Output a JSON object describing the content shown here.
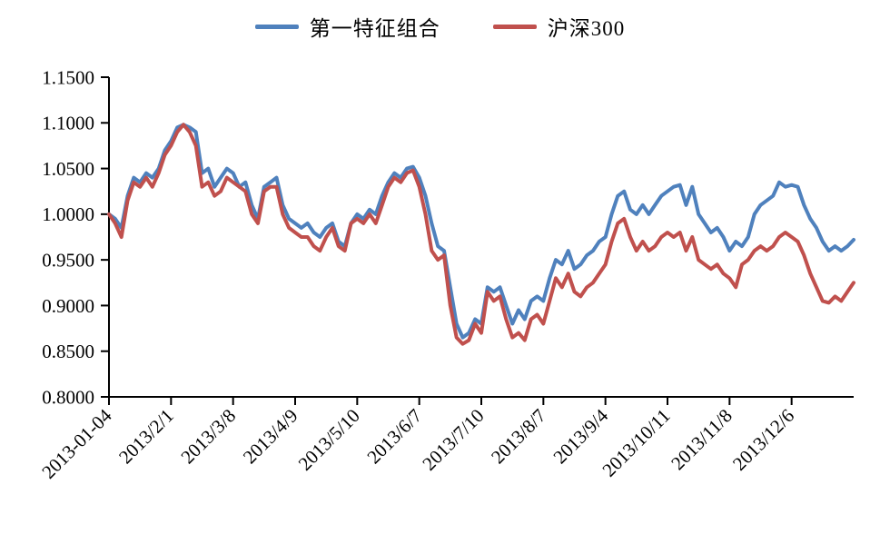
{
  "legend": {
    "items": [
      {
        "label": "第一特征组合",
        "color": "#4F81BD"
      },
      {
        "label": "沪深300",
        "color": "#C0504D"
      }
    ]
  },
  "chart_data": {
    "type": "line",
    "title": "",
    "xlabel": "",
    "ylabel": "",
    "grid": false,
    "legend_position": "top",
    "ylim": [
      0.8,
      1.15
    ],
    "y_tick_labels": [
      "0.8000",
      "0.8500",
      "0.9000",
      "0.9500",
      "1.0000",
      "1.0500",
      "1.1000",
      "1.1500"
    ],
    "x_tick_labels": [
      "2013-01-04",
      "2013/2/1",
      "2013/3/8",
      "2013/4/9",
      "2013/5/10",
      "2013/6/7",
      "2013/7/10",
      "2013/8/7",
      "2013/9/4",
      "2013/10/11",
      "2013/11/8",
      "2013/12/6"
    ],
    "x_tick_indices": [
      0,
      10,
      20,
      30,
      40,
      50,
      60,
      70,
      80,
      90,
      100,
      110
    ],
    "n_points": 121,
    "series": [
      {
        "name": "第一特征组合",
        "color": "#4F81BD",
        "values": [
          1.0,
          0.995,
          0.985,
          1.02,
          1.04,
          1.035,
          1.045,
          1.04,
          1.05,
          1.07,
          1.08,
          1.095,
          1.098,
          1.095,
          1.09,
          1.045,
          1.05,
          1.03,
          1.04,
          1.05,
          1.045,
          1.03,
          1.035,
          1.01,
          0.995,
          1.03,
          1.035,
          1.04,
          1.01,
          0.995,
          0.99,
          0.985,
          0.99,
          0.98,
          0.975,
          0.985,
          0.99,
          0.97,
          0.965,
          0.99,
          1.0,
          0.995,
          1.005,
          1.0,
          1.02,
          1.035,
          1.045,
          1.04,
          1.05,
          1.052,
          1.04,
          1.02,
          0.99,
          0.965,
          0.96,
          0.92,
          0.88,
          0.865,
          0.87,
          0.885,
          0.88,
          0.92,
          0.915,
          0.92,
          0.9,
          0.88,
          0.895,
          0.885,
          0.905,
          0.91,
          0.905,
          0.93,
          0.95,
          0.945,
          0.96,
          0.94,
          0.945,
          0.955,
          0.96,
          0.97,
          0.975,
          1.0,
          1.02,
          1.025,
          1.005,
          1.0,
          1.01,
          1.0,
          1.01,
          1.02,
          1.025,
          1.03,
          1.032,
          1.01,
          1.03,
          1.0,
          0.99,
          0.98,
          0.985,
          0.975,
          0.96,
          0.97,
          0.965,
          0.975,
          1.0,
          1.01,
          1.015,
          1.02,
          1.035,
          1.03,
          1.032,
          1.03,
          1.01,
          0.995,
          0.985,
          0.97,
          0.96,
          0.965,
          0.96,
          0.965,
          0.972
        ]
      },
      {
        "name": "沪深300",
        "color": "#C0504D",
        "values": [
          1.0,
          0.99,
          0.975,
          1.015,
          1.035,
          1.03,
          1.04,
          1.03,
          1.045,
          1.065,
          1.075,
          1.09,
          1.098,
          1.09,
          1.075,
          1.03,
          1.035,
          1.02,
          1.025,
          1.04,
          1.035,
          1.03,
          1.025,
          1.0,
          0.99,
          1.025,
          1.03,
          1.03,
          1.0,
          0.985,
          0.98,
          0.975,
          0.975,
          0.965,
          0.96,
          0.975,
          0.985,
          0.965,
          0.96,
          0.99,
          0.995,
          0.99,
          1.0,
          0.99,
          1.01,
          1.03,
          1.04,
          1.035,
          1.045,
          1.048,
          1.03,
          1.0,
          0.96,
          0.95,
          0.955,
          0.9,
          0.865,
          0.858,
          0.862,
          0.88,
          0.87,
          0.915,
          0.905,
          0.91,
          0.885,
          0.865,
          0.87,
          0.862,
          0.885,
          0.89,
          0.88,
          0.905,
          0.93,
          0.92,
          0.935,
          0.915,
          0.91,
          0.92,
          0.925,
          0.935,
          0.945,
          0.97,
          0.99,
          0.995,
          0.975,
          0.96,
          0.97,
          0.96,
          0.965,
          0.975,
          0.98,
          0.975,
          0.98,
          0.96,
          0.975,
          0.95,
          0.945,
          0.94,
          0.945,
          0.935,
          0.93,
          0.92,
          0.945,
          0.95,
          0.96,
          0.965,
          0.96,
          0.965,
          0.975,
          0.98,
          0.975,
          0.97,
          0.955,
          0.935,
          0.92,
          0.905,
          0.903,
          0.91,
          0.905,
          0.915,
          0.925
        ]
      }
    ]
  }
}
